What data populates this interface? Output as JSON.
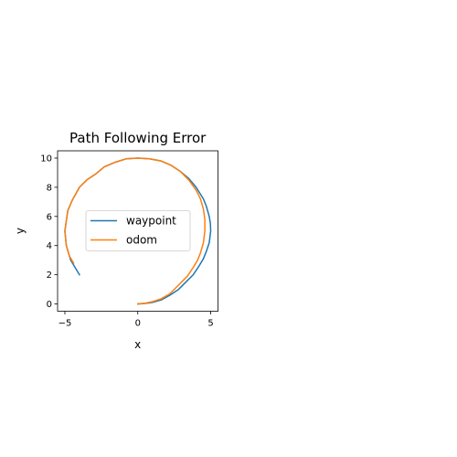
{
  "chart_data": {
    "type": "line",
    "title": "Path Following Error",
    "xlabel": "x",
    "ylabel": "y",
    "xlim": [
      -5.5,
      5.5
    ],
    "ylim": [
      -0.5,
      10.5
    ],
    "xticks": [
      -5,
      0,
      5
    ],
    "yticks": [
      0,
      2,
      4,
      6,
      8,
      10
    ],
    "xtick_labels": [
      "−5",
      "0",
      "5"
    ],
    "ytick_labels": [
      "0",
      "2",
      "4",
      "6",
      "8",
      "10"
    ],
    "grid": false,
    "legend": {
      "position": "center-right"
    },
    "series": [
      {
        "name": "waypoint",
        "color": "#1f77b4",
        "x": [
          0.0,
          0.5,
          1.0,
          1.6,
          2.2,
          2.8,
          3.3,
          3.8,
          4.2,
          4.5,
          4.7,
          4.9,
          5.0,
          4.98,
          4.9,
          4.7,
          4.5,
          4.0,
          3.5,
          2.9,
          2.3,
          1.6,
          0.8,
          0.0,
          -0.8,
          -1.6,
          -2.3,
          -2.9,
          -3.5,
          -4.0,
          -4.5,
          -4.8,
          -5.0,
          -4.9,
          -4.6,
          -4.0
        ],
        "y": [
          0.0,
          0.03,
          0.1,
          0.27,
          0.6,
          1.0,
          1.5,
          2.0,
          2.6,
          3.1,
          3.6,
          4.2,
          5.0,
          5.5,
          6.0,
          6.7,
          7.2,
          8.0,
          8.6,
          9.1,
          9.5,
          9.8,
          9.95,
          10.0,
          9.95,
          9.7,
          9.4,
          8.9,
          8.5,
          8.0,
          7.1,
          6.4,
          5.0,
          4.0,
          3.0,
          2.0
        ]
      },
      {
        "name": "odom",
        "color": "#ff7f0e",
        "x": [
          0.0,
          0.5,
          1.0,
          1.6,
          2.2,
          2.6,
          3.0,
          3.4,
          3.8,
          4.1,
          4.3,
          4.5,
          4.6,
          4.6,
          4.5,
          4.3,
          4.0,
          3.5,
          2.9,
          2.3,
          1.6,
          0.8,
          0.0,
          -0.8,
          -1.6,
          -2.3,
          -2.9,
          -3.5,
          -4.0,
          -4.5,
          -4.8,
          -5.0,
          -4.9,
          -4.7,
          -4.4
        ],
        "y": [
          0.0,
          0.05,
          0.15,
          0.35,
          0.7,
          1.1,
          1.5,
          1.9,
          2.5,
          3.0,
          3.5,
          4.2,
          5.0,
          5.8,
          6.5,
          7.2,
          7.8,
          8.5,
          9.1,
          9.5,
          9.8,
          9.95,
          10.0,
          9.95,
          9.7,
          9.4,
          8.9,
          8.5,
          8.0,
          7.1,
          6.4,
          5.0,
          4.0,
          3.3,
          2.8
        ]
      }
    ]
  }
}
